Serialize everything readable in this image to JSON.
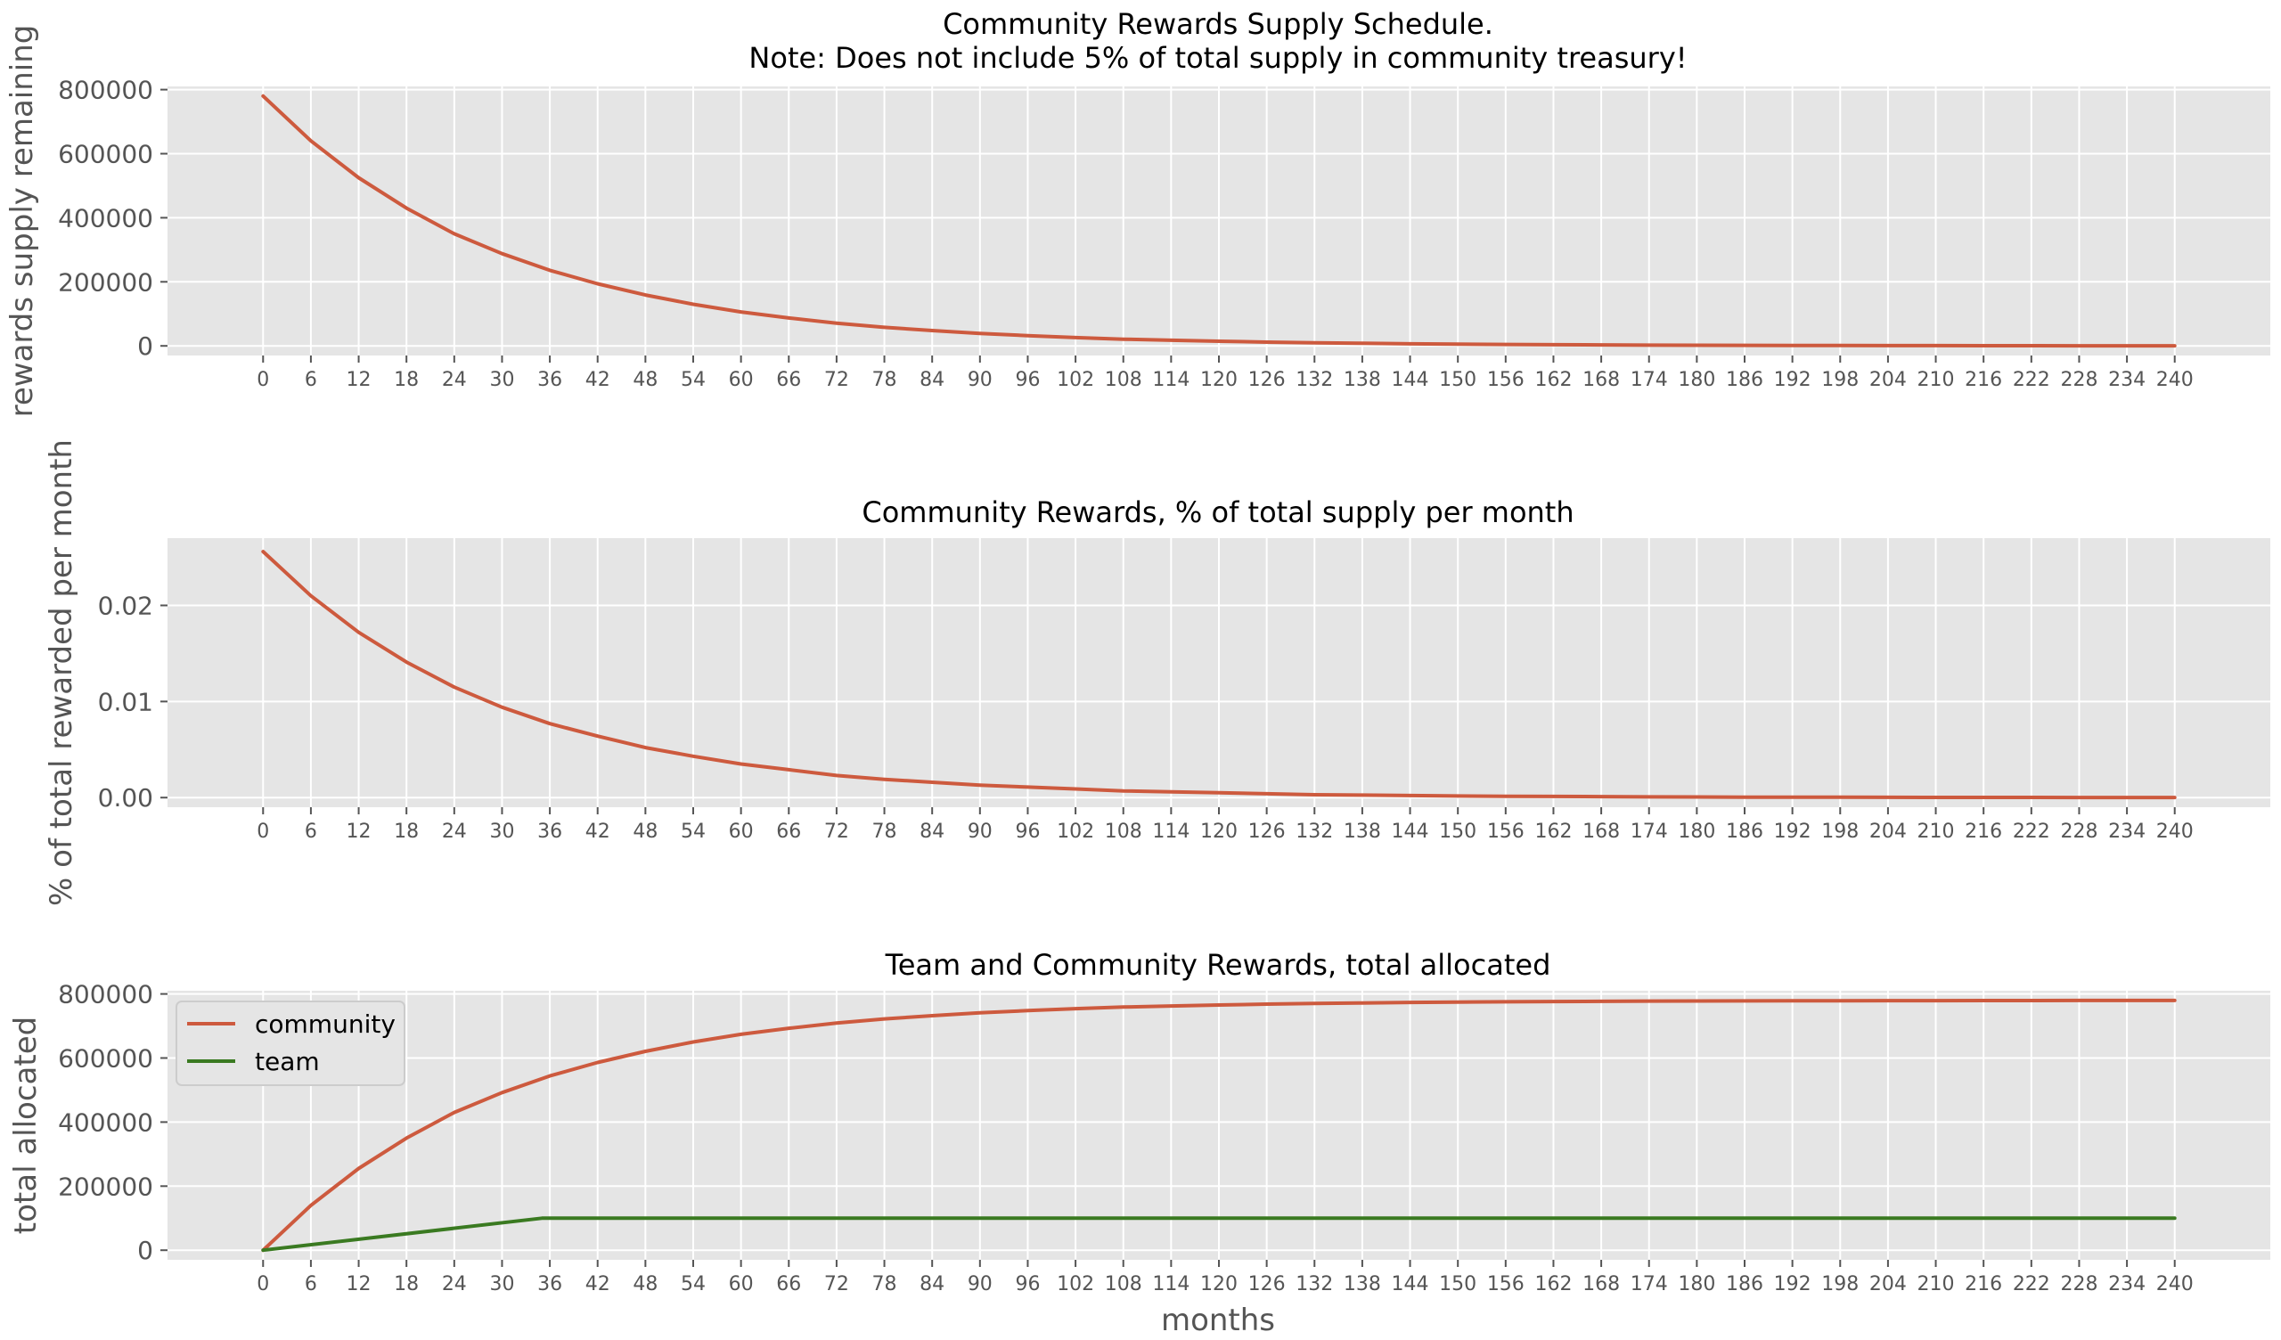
{
  "colors": {
    "panel_bg": "#E5E5E5",
    "grid": "#FFFFFF",
    "tick_text": "#555555",
    "title_text": "#000000",
    "community": "#CD5A3E",
    "team": "#3A7A21"
  },
  "x_ticks": [
    0,
    6,
    12,
    18,
    24,
    30,
    36,
    42,
    48,
    54,
    60,
    66,
    72,
    78,
    84,
    90,
    96,
    102,
    108,
    114,
    120,
    126,
    132,
    138,
    144,
    150,
    156,
    162,
    168,
    174,
    180,
    186,
    192,
    198,
    204,
    210,
    216,
    222,
    228,
    234,
    240
  ],
  "chart_data": [
    {
      "type": "line",
      "title": [
        "Community Rewards Supply Schedule.",
        "Note: Does not include 5% of total supply in community treasury!"
      ],
      "xlabel": "",
      "ylabel": "rewards supply remaining",
      "xlim": [
        -12,
        252
      ],
      "ylim": [
        -30000,
        810000
      ],
      "y_ticks": [
        0,
        200000,
        400000,
        600000,
        800000
      ],
      "y_tick_labels": [
        "0",
        "200000",
        "400000",
        "600000",
        "800000"
      ],
      "grid": true,
      "series": [
        {
          "color": "#CD5A3E",
          "x": [
            0,
            6,
            12,
            18,
            24,
            30,
            36,
            42,
            48,
            54,
            60,
            66,
            72,
            78,
            84,
            90,
            96,
            102,
            108,
            114,
            120,
            126,
            132,
            138,
            144,
            150,
            156,
            162,
            168,
            174,
            180,
            186,
            192,
            198,
            204,
            210,
            216,
            222,
            228,
            234,
            240
          ],
          "y": [
            780000,
            640000,
            525000,
            430000,
            350000,
            288000,
            236000,
            194000,
            159000,
            130000,
            106000,
            87000,
            71000,
            58000,
            48000,
            39000,
            32000,
            26000,
            21000,
            17500,
            14500,
            11800,
            9700,
            8000,
            6500,
            5300,
            4400,
            3600,
            3000,
            2400,
            2000,
            1600,
            1300,
            1100,
            900,
            750,
            600,
            500,
            400,
            330,
            270
          ]
        }
      ]
    },
    {
      "type": "line",
      "title": [
        "Community Rewards, % of total supply per month"
      ],
      "xlabel": "",
      "ylabel": "% of total rewarded per month",
      "xlim": [
        -12,
        252
      ],
      "ylim": [
        -0.001,
        0.027
      ],
      "y_ticks": [
        0.0,
        0.01,
        0.02
      ],
      "y_tick_labels": [
        "0.00",
        "0.01",
        "0.02"
      ],
      "grid": true,
      "series": [
        {
          "color": "#CD5A3E",
          "x": [
            0,
            6,
            12,
            18,
            24,
            30,
            36,
            42,
            48,
            54,
            60,
            66,
            72,
            78,
            84,
            90,
            96,
            102,
            108,
            114,
            120,
            126,
            132,
            138,
            144,
            150,
            156,
            162,
            168,
            174,
            180,
            186,
            192,
            198,
            204,
            210,
            216,
            222,
            228,
            234,
            240
          ],
          "y": [
            0.0256,
            0.021,
            0.0172,
            0.0141,
            0.0115,
            0.0094,
            0.0077,
            0.0064,
            0.0052,
            0.0043,
            0.0035,
            0.0029,
            0.0023,
            0.0019,
            0.0016,
            0.0013,
            0.0011,
            0.0009,
            0.0007,
            0.0006,
            0.0005,
            0.0004,
            0.0003,
            0.00026,
            0.00021,
            0.00017,
            0.00014,
            0.00012,
            0.0001,
            8e-05,
            7e-05,
            5e-05,
            4e-05,
            4e-05,
            3e-05,
            2e-05,
            2e-05,
            2e-05,
            1e-05,
            1e-05,
            1e-05
          ]
        }
      ]
    },
    {
      "type": "line",
      "title": [
        "Team and Community Rewards, total allocated"
      ],
      "xlabel": "months",
      "ylabel": "total allocated",
      "xlim": [
        -12,
        252
      ],
      "ylim": [
        -30000,
        810000
      ],
      "y_ticks": [
        0,
        200000,
        400000,
        600000,
        800000
      ],
      "y_tick_labels": [
        "0",
        "200000",
        "400000",
        "600000",
        "800000"
      ],
      "grid": true,
      "legend": "upper-left",
      "series": [
        {
          "name": "community",
          "color": "#CD5A3E",
          "x": [
            0,
            6,
            12,
            18,
            24,
            30,
            36,
            42,
            48,
            54,
            60,
            66,
            72,
            78,
            84,
            90,
            96,
            102,
            108,
            114,
            120,
            126,
            132,
            138,
            144,
            150,
            156,
            162,
            168,
            174,
            180,
            186,
            192,
            198,
            204,
            210,
            216,
            222,
            228,
            234,
            240
          ],
          "y": [
            0,
            140000,
            255000,
            350000,
            430000,
            492000,
            544000,
            586000,
            621000,
            650000,
            674000,
            693000,
            709000,
            722000,
            732000,
            741000,
            748000,
            754000,
            759000,
            762500,
            765500,
            768200,
            770300,
            772000,
            773500,
            774700,
            775600,
            776400,
            777000,
            777600,
            778000,
            778400,
            778700,
            778900,
            779100,
            779250,
            779400,
            779500,
            779600,
            779670,
            779730
          ]
        },
        {
          "name": "team",
          "color": "#3A7A21",
          "x": [
            0,
            35,
            36,
            240
          ],
          "y": [
            0,
            100000,
            100000,
            100000
          ]
        }
      ]
    }
  ]
}
